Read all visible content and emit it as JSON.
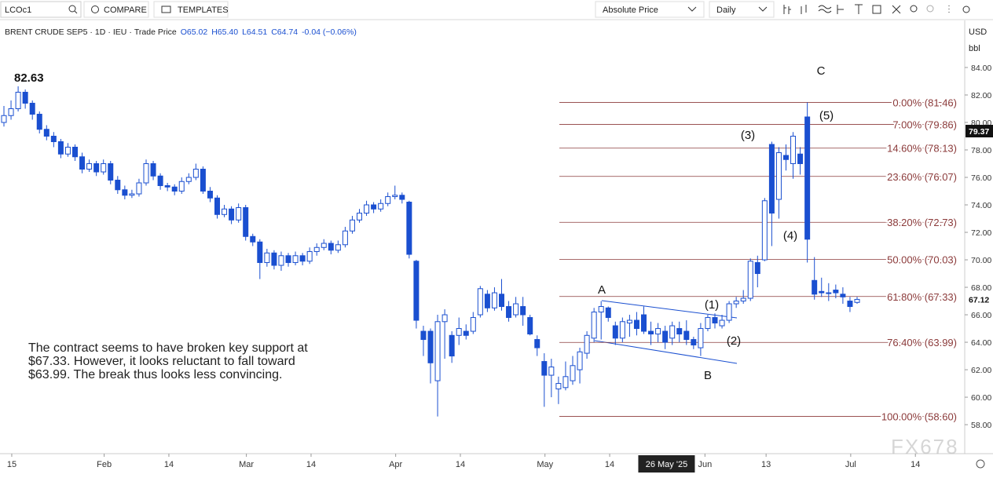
{
  "toolbar": {
    "symbol": "LCOc1",
    "compare": "COMPARE",
    "templates": "TEMPLATES",
    "price_mode": "Absolute Price",
    "interval": "Daily"
  },
  "chart_data": {
    "type": "candlestick",
    "legend": {
      "symbol": "BRENT CRUDE SEP5",
      "interval": "1D",
      "exchange": "IEU",
      "price_type": "Trade Price",
      "open": "O65.02",
      "high": "H65.40",
      "low": "L64.51",
      "close": "C64.74",
      "change": "-0.04 (−0.06%)"
    },
    "currency": "USD",
    "unit": "bbl",
    "up_color": "#ffffff",
    "down_color": "#1a4fd0",
    "outline_color": "#1a4fd0",
    "ohlc": [
      [
        80.0,
        81.2,
        79.7,
        80.5
      ],
      [
        80.5,
        81.6,
        80.2,
        81.0
      ],
      [
        81.0,
        82.63,
        80.8,
        82.2
      ],
      [
        82.2,
        82.4,
        81.0,
        81.4
      ],
      [
        81.4,
        81.6,
        80.2,
        80.6
      ],
      [
        80.6,
        80.8,
        79.2,
        79.5
      ],
      [
        79.5,
        79.8,
        78.7,
        79.0
      ],
      [
        79.0,
        79.3,
        78.2,
        78.6
      ],
      [
        78.6,
        78.8,
        77.4,
        77.7
      ],
      [
        77.7,
        78.5,
        77.5,
        78.2
      ],
      [
        78.2,
        78.4,
        77.2,
        77.5
      ],
      [
        77.5,
        77.8,
        76.3,
        76.6
      ],
      [
        76.6,
        77.3,
        76.4,
        77.0
      ],
      [
        77.0,
        77.2,
        76.1,
        76.4
      ],
      [
        76.4,
        77.3,
        76.2,
        77.0
      ],
      [
        77.0,
        77.2,
        75.5,
        75.8
      ],
      [
        75.8,
        76.1,
        74.8,
        75.1
      ],
      [
        75.1,
        75.4,
        74.4,
        74.7
      ],
      [
        74.7,
        75.1,
        74.5,
        74.8
      ],
      [
        74.8,
        75.9,
        74.6,
        75.6
      ],
      [
        75.6,
        77.3,
        75.4,
        77.0
      ],
      [
        77.0,
        77.2,
        75.8,
        76.1
      ],
      [
        76.1,
        76.3,
        75.1,
        75.4
      ],
      [
        75.4,
        75.6,
        75.0,
        75.3
      ],
      [
        75.3,
        75.5,
        74.7,
        75.0
      ],
      [
        75.0,
        76.0,
        74.8,
        75.7
      ],
      [
        75.7,
        76.3,
        75.5,
        76.0
      ],
      [
        76.0,
        77.0,
        75.8,
        76.6
      ],
      [
        76.6,
        76.8,
        74.8,
        75.0
      ],
      [
        75.0,
        75.3,
        74.2,
        74.5
      ],
      [
        74.5,
        74.7,
        73.0,
        73.3
      ],
      [
        73.3,
        74.0,
        73.1,
        73.7
      ],
      [
        73.7,
        73.9,
        72.6,
        72.9
      ],
      [
        72.9,
        74.1,
        72.7,
        73.8
      ],
      [
        73.8,
        74.0,
        71.4,
        71.7
      ],
      [
        71.7,
        71.9,
        71.0,
        71.3
      ],
      [
        71.3,
        71.5,
        68.6,
        69.8
      ],
      [
        69.8,
        70.8,
        69.5,
        70.5
      ],
      [
        70.5,
        70.7,
        69.3,
        69.6
      ],
      [
        69.6,
        70.6,
        69.2,
        70.3
      ],
      [
        70.3,
        70.5,
        69.5,
        69.8
      ],
      [
        69.8,
        70.6,
        69.6,
        70.3
      ],
      [
        70.3,
        70.5,
        69.6,
        69.9
      ],
      [
        69.9,
        70.9,
        69.7,
        70.6
      ],
      [
        70.6,
        71.2,
        70.3,
        70.9
      ],
      [
        70.9,
        71.5,
        70.7,
        71.2
      ],
      [
        71.2,
        71.4,
        70.4,
        70.7
      ],
      [
        70.7,
        71.4,
        70.5,
        71.1
      ],
      [
        71.1,
        72.4,
        70.9,
        72.1
      ],
      [
        72.1,
        73.2,
        71.9,
        72.9
      ],
      [
        72.9,
        73.7,
        72.7,
        73.4
      ],
      [
        73.4,
        74.3,
        73.2,
        74.0
      ],
      [
        74.0,
        74.2,
        73.4,
        73.7
      ],
      [
        73.7,
        74.4,
        73.5,
        74.1
      ],
      [
        74.1,
        74.9,
        73.9,
        74.6
      ],
      [
        74.6,
        75.4,
        74.4,
        74.7
      ],
      [
        74.7,
        74.9,
        74.1,
        74.4
      ],
      [
        74.2,
        74.3,
        70.1,
        70.4
      ],
      [
        69.9,
        70.0,
        65.0,
        65.6
      ],
      [
        64.8,
        65.2,
        63.0,
        64.2
      ],
      [
        64.8,
        65.0,
        61.0,
        62.5
      ],
      [
        61.2,
        66.0,
        58.6,
        65.5
      ],
      [
        65.5,
        66.4,
        62.8,
        66.0
      ],
      [
        64.5,
        64.8,
        62.5,
        63.0
      ],
      [
        64.5,
        65.8,
        63.8,
        65.0
      ],
      [
        64.8,
        65.3,
        64.2,
        64.5
      ],
      [
        64.8,
        66.2,
        64.6,
        65.8
      ],
      [
        66.0,
        68.1,
        65.8,
        67.9
      ],
      [
        67.5,
        67.8,
        66.2,
        66.5
      ],
      [
        66.5,
        68.0,
        66.3,
        67.6
      ],
      [
        67.5,
        68.6,
        66.3,
        66.6
      ],
      [
        66.6,
        67.0,
        65.5,
        65.8
      ],
      [
        66.0,
        67.3,
        65.8,
        66.8
      ],
      [
        66.6,
        67.3,
        65.2,
        66.0
      ],
      [
        65.8,
        66.0,
        64.5,
        64.6
      ],
      [
        64.2,
        64.5,
        63.0,
        63.6
      ],
      [
        62.6,
        63.2,
        59.3,
        61.6
      ],
      [
        61.6,
        62.8,
        60.0,
        62.2
      ],
      [
        60.6,
        61.5,
        59.5,
        61.0
      ],
      [
        60.7,
        62.6,
        60.5,
        61.5
      ],
      [
        61.2,
        63.0,
        60.9,
        62.3
      ],
      [
        62.0,
        63.6,
        61.0,
        63.3
      ],
      [
        63.2,
        64.8,
        62.8,
        64.5
      ],
      [
        64.3,
        66.5,
        64.0,
        66.2
      ],
      [
        66.2,
        67.0,
        64.2,
        66.6
      ],
      [
        66.5,
        66.6,
        65.5,
        65.8
      ],
      [
        65.2,
        65.5,
        63.8,
        64.3
      ],
      [
        64.3,
        65.8,
        64.0,
        65.5
      ],
      [
        65.4,
        66.0,
        64.4,
        65.6
      ],
      [
        65.6,
        66.2,
        64.5,
        65.0
      ],
      [
        66.0,
        66.6,
        64.6,
        64.8
      ],
      [
        64.8,
        65.5,
        63.8,
        64.6
      ],
      [
        64.6,
        65.4,
        64.0,
        65.0
      ],
      [
        64.8,
        65.2,
        63.5,
        64.0
      ],
      [
        64.3,
        65.5,
        63.8,
        65.2
      ],
      [
        65.0,
        65.5,
        64.0,
        64.6
      ],
      [
        64.8,
        65.6,
        63.8,
        64.2
      ],
      [
        64.2,
        64.4,
        63.5,
        63.8
      ],
      [
        63.6,
        65.4,
        63.0,
        65.0
      ],
      [
        65.0,
        66.0,
        64.8,
        65.8
      ],
      [
        65.8,
        66.1,
        65.0,
        65.4
      ],
      [
        65.2,
        66.0,
        65.0,
        65.6
      ],
      [
        65.6,
        67.0,
        65.4,
        66.8
      ],
      [
        66.8,
        67.3,
        66.5,
        67.0
      ],
      [
        67.0,
        67.8,
        66.8,
        67.2
      ],
      [
        67.2,
        70.1,
        67.0,
        69.9
      ],
      [
        69.8,
        70.3,
        68.0,
        69.0
      ],
      [
        70.0,
        74.5,
        69.9,
        74.3
      ],
      [
        78.4,
        78.6,
        71.0,
        73.4
      ],
      [
        74.4,
        78.2,
        73.0,
        77.8
      ],
      [
        77.6,
        78.4,
        76.5,
        77.3
      ],
      [
        77.0,
        79.3,
        75.9,
        79.0
      ],
      [
        77.7,
        78.2,
        76.2,
        77.0
      ],
      [
        80.4,
        81.46,
        69.8,
        71.5
      ],
      [
        68.5,
        70.2,
        67.1,
        67.5
      ],
      [
        67.7,
        68.7,
        67.3,
        67.6
      ],
      [
        67.6,
        68.3,
        67.0,
        67.6
      ],
      [
        67.8,
        68.2,
        67.2,
        67.6
      ],
      [
        67.5,
        68.0,
        66.8,
        67.3
      ],
      [
        67.0,
        67.3,
        66.2,
        66.6
      ],
      [
        66.9,
        67.3,
        66.8,
        67.12
      ]
    ],
    "ylim": [
      55.89,
      87.37
    ],
    "yticks": [
      {
        "value": 58,
        "label": "58.00"
      },
      {
        "value": 60,
        "label": "60.00"
      },
      {
        "value": 62,
        "label": "62.00"
      },
      {
        "value": 64,
        "label": "64.00"
      },
      {
        "value": 66,
        "label": "66.00"
      },
      {
        "value": 68,
        "label": "68.00"
      },
      {
        "value": 70,
        "label": "70.00"
      },
      {
        "value": 72,
        "label": "72.00"
      },
      {
        "value": 74,
        "label": "74.00"
      },
      {
        "value": 76,
        "label": "76.00"
      },
      {
        "value": 78,
        "label": "78.00"
      },
      {
        "value": 80,
        "label": "80.00"
      },
      {
        "value": 82,
        "label": "82.00"
      },
      {
        "value": 84,
        "label": "84.00"
      }
    ],
    "xticks": [
      {
        "value": 1.1,
        "label": "15"
      },
      {
        "value": 14.1,
        "label": "Feb"
      },
      {
        "value": 23.2,
        "label": "14"
      },
      {
        "value": 34.1,
        "label": "Mar"
      },
      {
        "value": 43.2,
        "label": "14"
      },
      {
        "value": 55.1,
        "label": "Apr"
      },
      {
        "value": 64.2,
        "label": "14"
      },
      {
        "value": 76.1,
        "label": "May"
      },
      {
        "value": 85.2,
        "label": "14"
      },
      {
        "value": 98.6,
        "label": "Jun"
      },
      {
        "value": 107.2,
        "label": "13"
      },
      {
        "value": 119.1,
        "label": "Jul"
      },
      {
        "value": 128.2,
        "label": "14"
      }
    ],
    "crosshair_x": {
      "value": 93.2,
      "label": "26 May '25"
    },
    "crosshair_price": 79.37,
    "last_price": 67.12,
    "fib_color": "#8b3a3a",
    "fib_levels": [
      {
        "value": 81.46,
        "label": "0.00% (81.46)"
      },
      {
        "value": 79.86,
        "label": "7.00% (79.86)"
      },
      {
        "value": 78.13,
        "label": "14.60% (78.13)"
      },
      {
        "value": 76.07,
        "label": "23.60% (76.07)"
      },
      {
        "value": 72.73,
        "label": "38.20% (72.73)"
      },
      {
        "value": 70.03,
        "label": "50.00% (70.03)"
      },
      {
        "value": 67.33,
        "label": "61.80% (67.33)"
      },
      {
        "value": 63.99,
        "label": "76.40% (63.99)"
      },
      {
        "value": 58.6,
        "label": "100.00% (58.60)"
      }
    ],
    "peak_label": "82.63",
    "wave_labels": [
      "A",
      "B",
      "C",
      "(1)",
      "(2)",
      "(3)",
      "(4)",
      "(5)"
    ],
    "comment": [
      "The contract seems to have broken key support at",
      "$67.33. However, it looks reluctant to fall toward",
      "$63.99.  The break thus looks less convincing."
    ],
    "watermark": "FX678"
  }
}
